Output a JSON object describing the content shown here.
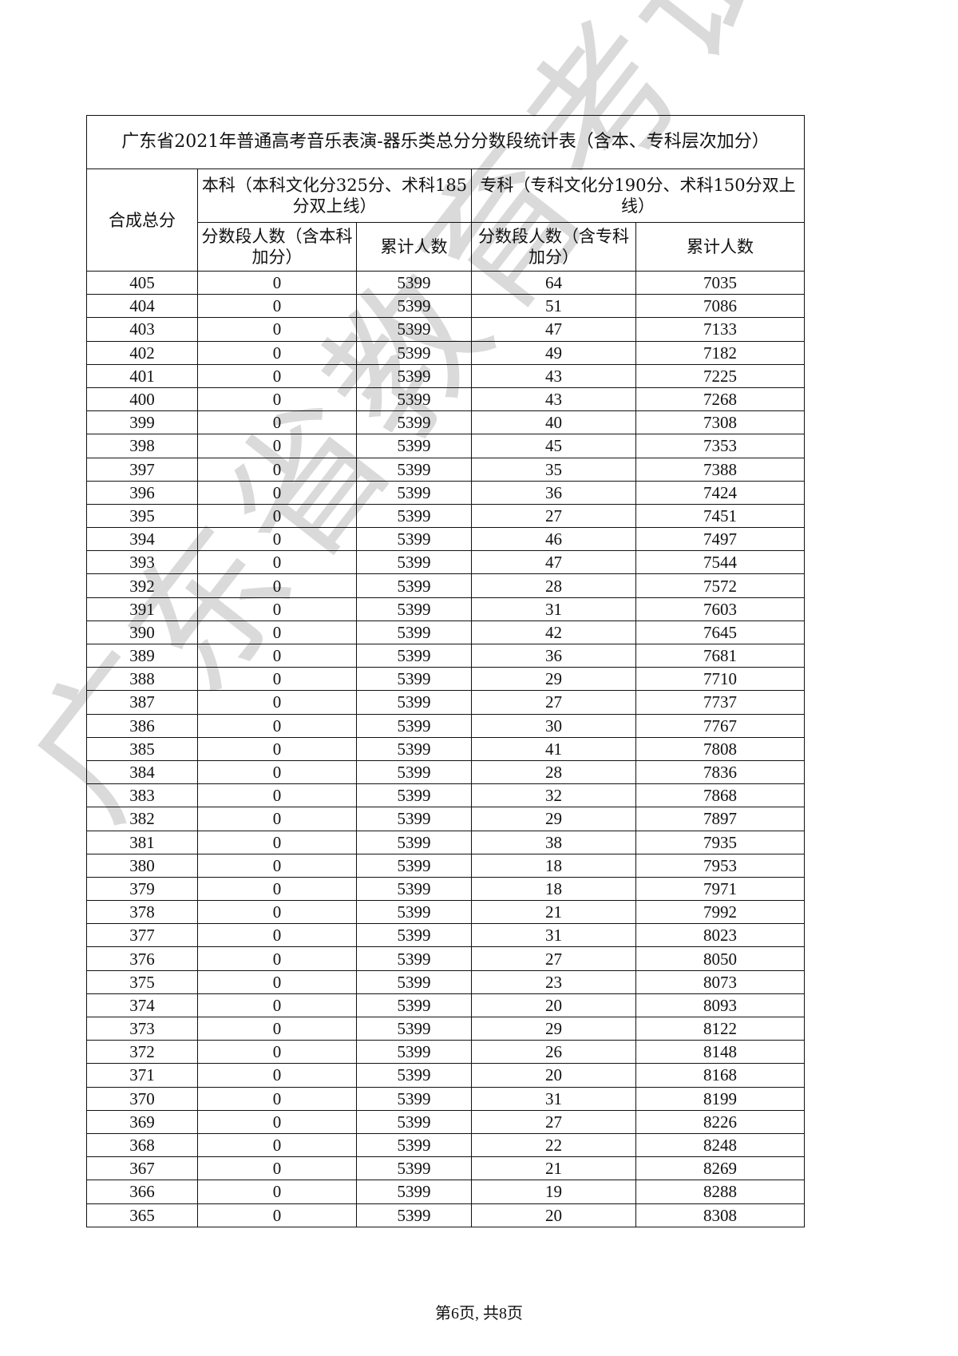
{
  "title": "广东省2021年普通高考音乐表演-器乐类总分分数段统计表（含本、专科层次加分）",
  "headers": {
    "total_score": "合成总分",
    "undergrad": "本科（本科文化分325分、术科185分双上线）",
    "junior": "专科（专科文化分190分、术科150分双上线）",
    "undergrad_count": "分数段人数（含本科加分）",
    "undergrad_cumulative": "累计人数",
    "junior_count": "分数段人数（含专科加分）",
    "junior_cumulative": "累计人数"
  },
  "rows": [
    [
      "405",
      "0",
      "5399",
      "64",
      "7035"
    ],
    [
      "404",
      "0",
      "5399",
      "51",
      "7086"
    ],
    [
      "403",
      "0",
      "5399",
      "47",
      "7133"
    ],
    [
      "402",
      "0",
      "5399",
      "49",
      "7182"
    ],
    [
      "401",
      "0",
      "5399",
      "43",
      "7225"
    ],
    [
      "400",
      "0",
      "5399",
      "43",
      "7268"
    ],
    [
      "399",
      "0",
      "5399",
      "40",
      "7308"
    ],
    [
      "398",
      "0",
      "5399",
      "45",
      "7353"
    ],
    [
      "397",
      "0",
      "5399",
      "35",
      "7388"
    ],
    [
      "396",
      "0",
      "5399",
      "36",
      "7424"
    ],
    [
      "395",
      "0",
      "5399",
      "27",
      "7451"
    ],
    [
      "394",
      "0",
      "5399",
      "46",
      "7497"
    ],
    [
      "393",
      "0",
      "5399",
      "47",
      "7544"
    ],
    [
      "392",
      "0",
      "5399",
      "28",
      "7572"
    ],
    [
      "391",
      "0",
      "5399",
      "31",
      "7603"
    ],
    [
      "390",
      "0",
      "5399",
      "42",
      "7645"
    ],
    [
      "389",
      "0",
      "5399",
      "36",
      "7681"
    ],
    [
      "388",
      "0",
      "5399",
      "29",
      "7710"
    ],
    [
      "387",
      "0",
      "5399",
      "27",
      "7737"
    ],
    [
      "386",
      "0",
      "5399",
      "30",
      "7767"
    ],
    [
      "385",
      "0",
      "5399",
      "41",
      "7808"
    ],
    [
      "384",
      "0",
      "5399",
      "28",
      "7836"
    ],
    [
      "383",
      "0",
      "5399",
      "32",
      "7868"
    ],
    [
      "382",
      "0",
      "5399",
      "29",
      "7897"
    ],
    [
      "381",
      "0",
      "5399",
      "38",
      "7935"
    ],
    [
      "380",
      "0",
      "5399",
      "18",
      "7953"
    ],
    [
      "379",
      "0",
      "5399",
      "18",
      "7971"
    ],
    [
      "378",
      "0",
      "5399",
      "21",
      "7992"
    ],
    [
      "377",
      "0",
      "5399",
      "31",
      "8023"
    ],
    [
      "376",
      "0",
      "5399",
      "27",
      "8050"
    ],
    [
      "375",
      "0",
      "5399",
      "23",
      "8073"
    ],
    [
      "374",
      "0",
      "5399",
      "20",
      "8093"
    ],
    [
      "373",
      "0",
      "5399",
      "29",
      "8122"
    ],
    [
      "372",
      "0",
      "5399",
      "26",
      "8148"
    ],
    [
      "371",
      "0",
      "5399",
      "20",
      "8168"
    ],
    [
      "370",
      "0",
      "5399",
      "31",
      "8199"
    ],
    [
      "369",
      "0",
      "5399",
      "27",
      "8226"
    ],
    [
      "368",
      "0",
      "5399",
      "22",
      "8248"
    ],
    [
      "367",
      "0",
      "5399",
      "21",
      "8269"
    ],
    [
      "366",
      "0",
      "5399",
      "19",
      "8288"
    ],
    [
      "365",
      "0",
      "5399",
      "20",
      "8308"
    ]
  ],
  "footer": "第6页, 共8页",
  "watermark": "广东省教育考试院"
}
